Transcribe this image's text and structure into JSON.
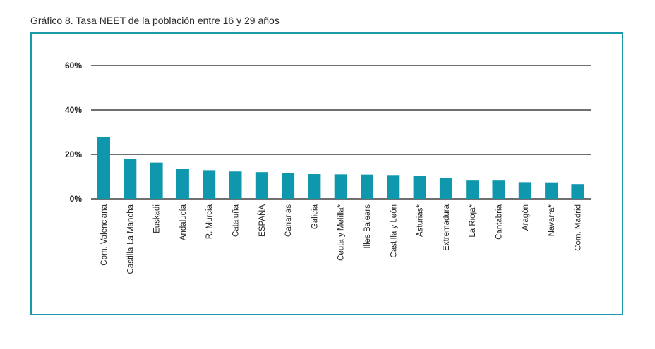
{
  "page": {
    "title": "Gráfico 8. Tasa NEET de la población entre 16 y 29 años"
  },
  "colors": {
    "bar": "#0e97ad",
    "frame": "#1b9aaa",
    "gridline": "#1a1a1a"
  },
  "chart_data": {
    "type": "bar",
    "title": "",
    "xlabel": "",
    "ylabel": "",
    "ylim": [
      0,
      60
    ],
    "yticks": [
      0,
      20,
      40,
      60
    ],
    "ytick_labels": [
      "0%",
      "20%",
      "40%",
      "60%"
    ],
    "grid": true,
    "categories": [
      "Com. Valenciana",
      "Castilla-La Mancha",
      "Euskadi",
      "Andalucía",
      "R. Murcia",
      "Cataluña",
      "ESPAÑA",
      "Canarias",
      "Galicia",
      "Ceuta y Melilla*",
      "Illes Balears",
      "Castilla y León",
      "Asturias*",
      "Extremadura",
      "La Rioja*",
      "Cantabria",
      "Aragón",
      "Navarra*",
      "Com. Madrid"
    ],
    "values": [
      27.9,
      17.8,
      16.3,
      13.6,
      12.9,
      12.3,
      12.0,
      11.6,
      11.1,
      11.0,
      10.9,
      10.7,
      10.2,
      9.3,
      8.2,
      8.2,
      7.5,
      7.4,
      6.6
    ]
  }
}
